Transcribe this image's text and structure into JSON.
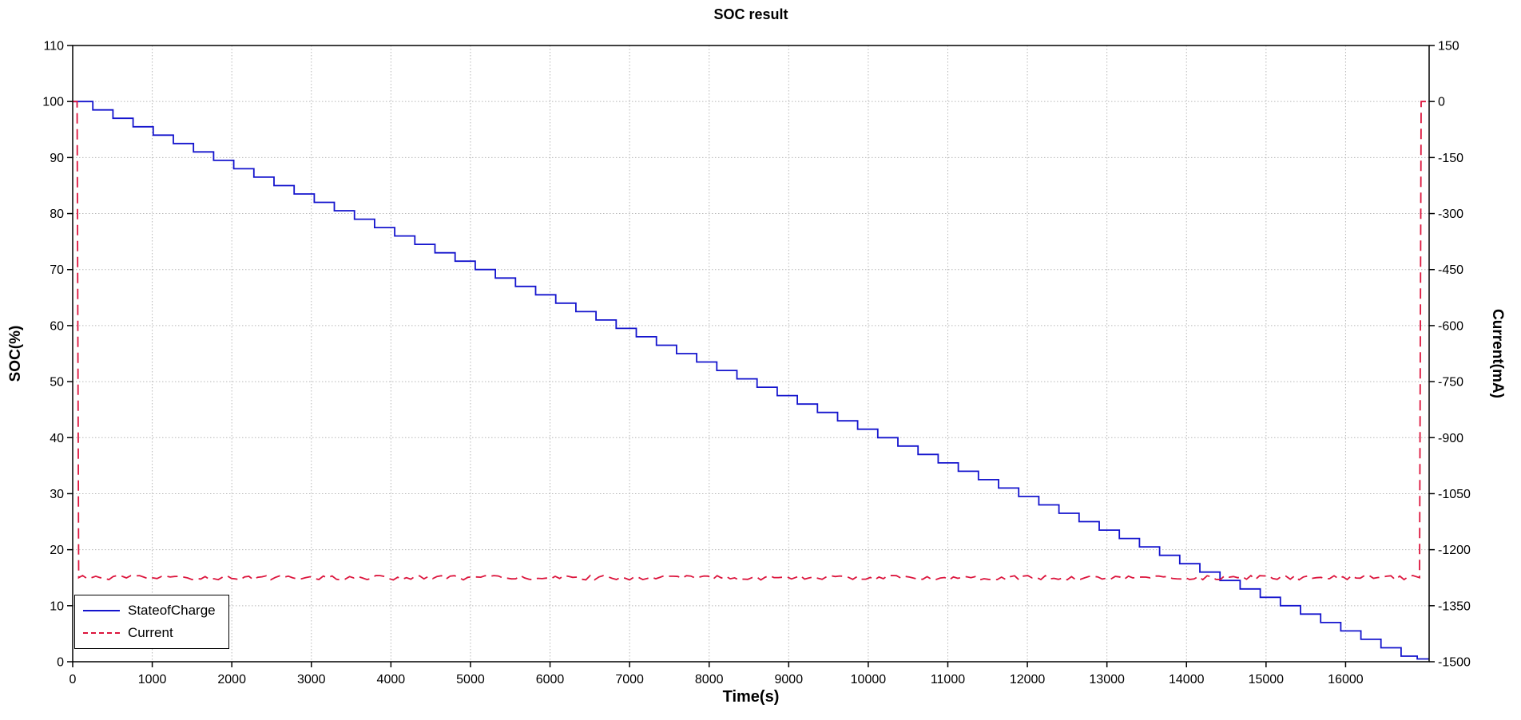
{
  "title": "SOC result",
  "axes": {
    "x_label": "Time(s)",
    "y_left_label": "SOC(%)",
    "y_right_label": "Current(mA)"
  },
  "legend": {
    "position": "bottom-left",
    "items": [
      {
        "label": "StateofCharge",
        "color": "#1414cd",
        "style": "solid"
      },
      {
        "label": "Current",
        "color": "#dc143c",
        "style": "dashed"
      }
    ]
  },
  "chart_data": {
    "type": "line",
    "title": "SOC result",
    "xlabel": "Time(s)",
    "ylabel_left": "SOC(%)",
    "ylabel_right": "Current(mA)",
    "xlim": [
      0,
      17050
    ],
    "ylim_left": [
      0,
      110
    ],
    "ylim_right": [
      -1500,
      150
    ],
    "x_ticks": [
      0,
      1000,
      2000,
      3000,
      4000,
      5000,
      6000,
      7000,
      8000,
      9000,
      10000,
      11000,
      12000,
      13000,
      14000,
      15000,
      16000
    ],
    "y_ticks_left": [
      0,
      10,
      20,
      30,
      40,
      50,
      60,
      70,
      80,
      90,
      100,
      110
    ],
    "y_ticks_right": [
      150,
      0,
      -150,
      -300,
      -450,
      -600,
      -750,
      -900,
      -1050,
      -1200,
      -1350,
      -1500
    ],
    "grid": true,
    "grid_color": "#b8b8b8",
    "border_color": "#000000",
    "legend_position": "bottom-left",
    "series": [
      {
        "name": "StateofCharge",
        "shape": "staircase",
        "axis": "left",
        "color": "#1414cd",
        "line_style": "solid",
        "start_value_percent": 100,
        "end_value_percent": 0.5,
        "step_drop_percent": 1.5,
        "step_width_s": 253,
        "t_start_s": 0,
        "t_end_s": 16900,
        "anchor_points": [
          [
            0,
            100
          ],
          [
            2000,
            89.5
          ],
          [
            4000,
            77.5
          ],
          [
            6000,
            65.5
          ],
          [
            8000,
            53.5
          ],
          [
            10000,
            41.5
          ],
          [
            12000,
            29.5
          ],
          [
            14000,
            17.5
          ],
          [
            16000,
            5.5
          ],
          [
            16900,
            0.5
          ]
        ]
      },
      {
        "name": "Current",
        "shape": "segments",
        "axis": "right",
        "color": "#dc143c",
        "line_style": "dashed",
        "plateau_mA": -1275,
        "noise_mA": 6,
        "points": [
          [
            0,
            0
          ],
          [
            55,
            0
          ],
          [
            75,
            -1275
          ],
          [
            16930,
            -1275
          ],
          [
            16950,
            0
          ],
          [
            17050,
            0
          ]
        ]
      }
    ]
  }
}
